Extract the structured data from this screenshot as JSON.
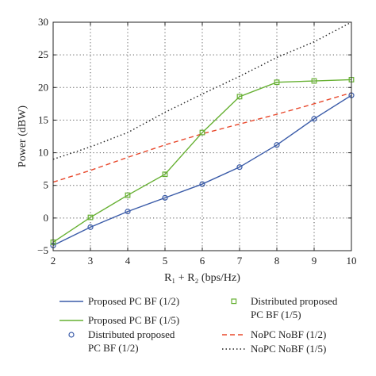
{
  "chart_data": {
    "type": "line",
    "title": "",
    "xlabel": "R₁ + R₂ (bps/Hz)",
    "ylabel": "Power (dBW)",
    "xlim": [
      2,
      10
    ],
    "ylim": [
      -5,
      30
    ],
    "xticks": [
      2,
      3,
      4,
      5,
      6,
      7,
      8,
      9,
      10
    ],
    "yticks": [
      -5,
      0,
      5,
      10,
      15,
      20,
      25,
      30
    ],
    "grid": true,
    "legend_position": "bottom",
    "x": [
      2,
      3,
      4,
      5,
      6,
      7,
      8,
      9,
      10
    ],
    "series": [
      {
        "name": "Proposed PC BF (1/2)",
        "color": "#3a5ba8",
        "style": "solid",
        "marker": "none",
        "values": [
          -4.2,
          -1.4,
          1.0,
          3.1,
          5.2,
          7.8,
          11.2,
          15.2,
          18.8
        ]
      },
      {
        "name": "Proposed PC BF (1/5)",
        "color": "#66b032",
        "style": "solid",
        "marker": "none",
        "values": [
          -3.7,
          0.1,
          3.5,
          6.7,
          13.1,
          18.6,
          20.8,
          21.0,
          21.2
        ]
      },
      {
        "name": "Distributed proposed PC BF (1/2)",
        "color": "#3a5ba8",
        "style": "none",
        "marker": "circle",
        "values": [
          -4.2,
          -1.4,
          1.0,
          3.1,
          5.2,
          7.8,
          11.2,
          15.2,
          18.8
        ]
      },
      {
        "name": "Distributed proposed PC BF (1/5)",
        "color": "#66b032",
        "style": "none",
        "marker": "square",
        "values": [
          -3.7,
          0.1,
          3.5,
          6.7,
          13.1,
          18.6,
          20.8,
          21.0,
          21.2
        ]
      },
      {
        "name": "NoPC NoBF (1/2)",
        "color": "#e8482c",
        "style": "dashed",
        "marker": "none",
        "values": [
          5.5,
          7.3,
          9.3,
          11.2,
          12.9,
          14.4,
          15.9,
          17.5,
          19.2
        ]
      },
      {
        "name": "NoPC NoBF (1/5)",
        "color": "#222222",
        "style": "dotted",
        "marker": "none",
        "values": [
          9.0,
          10.9,
          13.1,
          16.2,
          19.0,
          21.7,
          24.6,
          27.0,
          30.0
        ]
      }
    ],
    "legend": [
      {
        "line1": "Proposed PC BF (1/2)",
        "line2": ""
      },
      {
        "line1": "Distributed proposed",
        "line2": "PC BF (1/5)"
      },
      {
        "line1": "Proposed PC BF (1/5)",
        "line2": ""
      },
      {
        "line1": "NoPC NoBF (1/2)",
        "line2": ""
      },
      {
        "line1": "Distributed proposed",
        "line2": "PC BF (1/2)"
      },
      {
        "line1": "NoPC NoBF (1/5)",
        "line2": ""
      }
    ]
  }
}
